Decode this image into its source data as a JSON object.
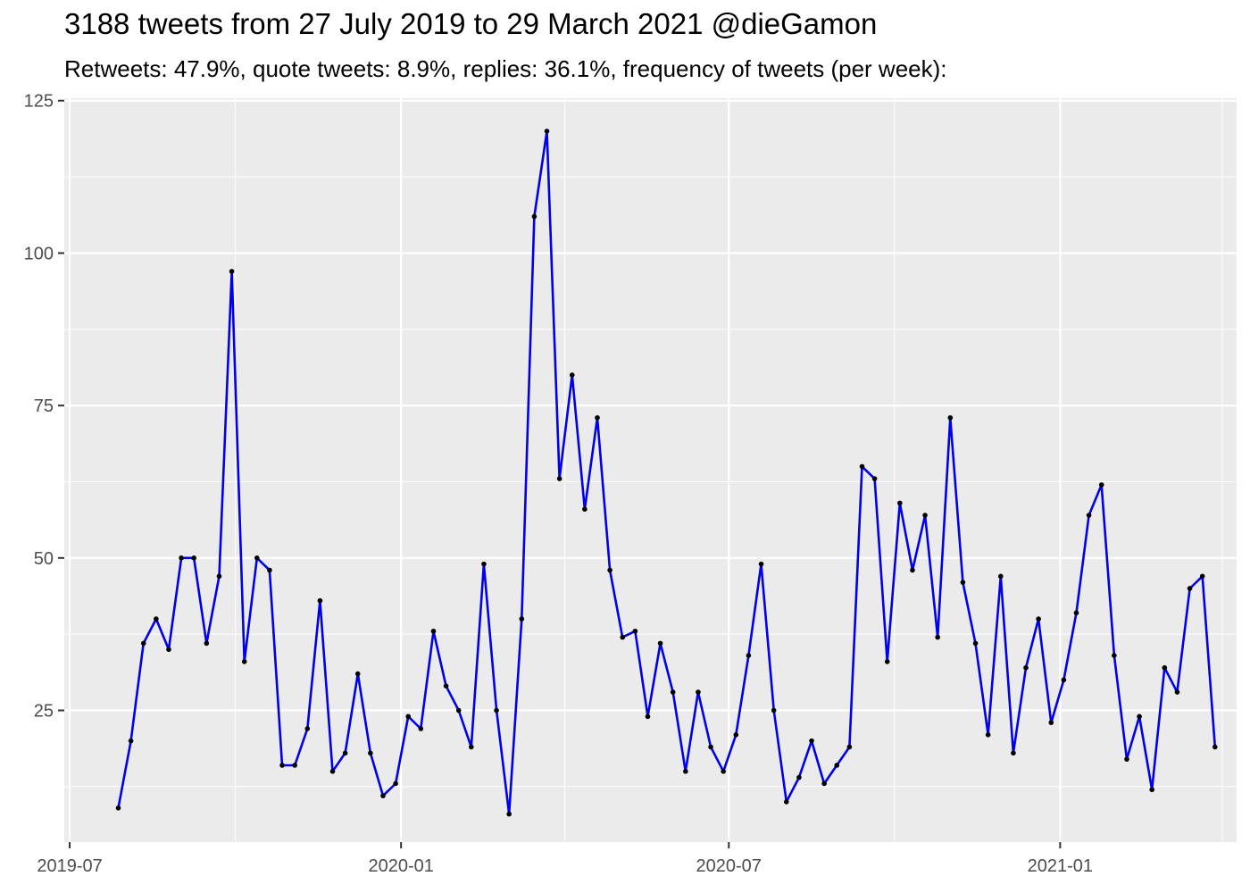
{
  "title": "3188 tweets from 27 July 2019 to 29 March 2021 @dieGamon",
  "subtitle": "Retweets: 47.9%, quote tweets: 8.9%, replies: 36.1%, frequency of tweets (per week):",
  "colors": {
    "line": "#0000ee",
    "point": "#000000",
    "panel": "#ebebeb",
    "grid": "#ffffff"
  },
  "chart_data": {
    "type": "line",
    "title": "3188 tweets from 27 July 2019 to 29 March 2021 @dieGamon",
    "subtitle": "Retweets: 47.9%, quote tweets: 8.9%, replies: 36.1%, frequency of tweets (per week):",
    "xlabel": "",
    "ylabel": "",
    "x_ticks": [
      "2019-07",
      "2020-01",
      "2020-07",
      "2021-01"
    ],
    "y_ticks": [
      25,
      50,
      75,
      100,
      125
    ],
    "xlim": [
      "2019-06-28",
      "2021-04-09"
    ],
    "ylim": [
      3.4,
      125.4
    ],
    "grid": true,
    "legend": "none",
    "series": [
      {
        "x": [
          "2019-07-28",
          "2019-08-04",
          "2019-08-11",
          "2019-08-18",
          "2019-08-25",
          "2019-09-01",
          "2019-09-08",
          "2019-09-15",
          "2019-09-22",
          "2019-09-29",
          "2019-10-06",
          "2019-10-13",
          "2019-10-20",
          "2019-10-27",
          "2019-11-03",
          "2019-11-10",
          "2019-11-17",
          "2019-11-24",
          "2019-12-01",
          "2019-12-08",
          "2019-12-15",
          "2019-12-22",
          "2019-12-29",
          "2020-01-05",
          "2020-01-12",
          "2020-01-19",
          "2020-01-26",
          "2020-02-02",
          "2020-02-09",
          "2020-02-16",
          "2020-02-23",
          "2020-03-01",
          "2020-03-08",
          "2020-03-15",
          "2020-03-22",
          "2020-03-29",
          "2020-04-05",
          "2020-04-12",
          "2020-04-19",
          "2020-04-26",
          "2020-05-03",
          "2020-05-10",
          "2020-05-17",
          "2020-05-24",
          "2020-05-31",
          "2020-06-07",
          "2020-06-14",
          "2020-06-21",
          "2020-06-28",
          "2020-07-05",
          "2020-07-12",
          "2020-07-19",
          "2020-07-26",
          "2020-08-02",
          "2020-08-09",
          "2020-08-16",
          "2020-08-23",
          "2020-08-30",
          "2020-09-06",
          "2020-09-13",
          "2020-09-20",
          "2020-09-27",
          "2020-10-04",
          "2020-10-11",
          "2020-10-18",
          "2020-10-25",
          "2020-11-01",
          "2020-11-08",
          "2020-11-15",
          "2020-11-22",
          "2020-11-29",
          "2020-12-06",
          "2020-12-13",
          "2020-12-20",
          "2020-12-27",
          "2021-01-03",
          "2021-01-10",
          "2021-01-17",
          "2021-01-24",
          "2021-01-31",
          "2021-02-07",
          "2021-02-14",
          "2021-02-21",
          "2021-02-28",
          "2021-03-07",
          "2021-03-14",
          "2021-03-21",
          "2021-03-28"
        ],
        "values": [
          9,
          20,
          36,
          40,
          35,
          50,
          50,
          36,
          47,
          97,
          33,
          50,
          48,
          16,
          16,
          22,
          43,
          15,
          18,
          31,
          18,
          11,
          13,
          24,
          22,
          38,
          29,
          25,
          19,
          49,
          25,
          8,
          40,
          106,
          120,
          63,
          80,
          58,
          73,
          48,
          37,
          38,
          24,
          36,
          28,
          15,
          28,
          19,
          15,
          21,
          34,
          49,
          25,
          10,
          14,
          20,
          13,
          16,
          19,
          65,
          63,
          33,
          59,
          48,
          57,
          37,
          73,
          46,
          36,
          21,
          47,
          18,
          32,
          40,
          23,
          30,
          41,
          57,
          62,
          34,
          17,
          24,
          12,
          32,
          28,
          45,
          47,
          19
        ]
      }
    ]
  }
}
